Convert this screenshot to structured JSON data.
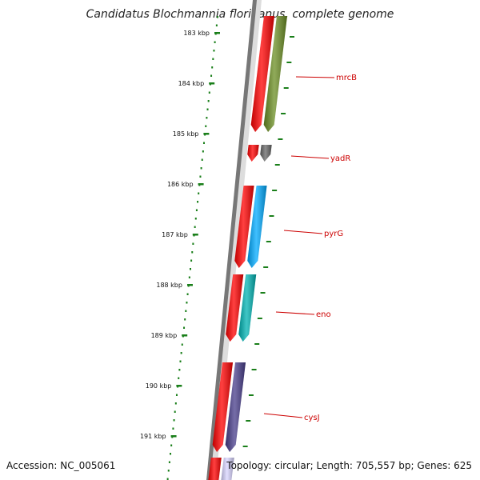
{
  "title": "Candidatus Blochmannia floridanus, complete genome",
  "footer": {
    "accession": "Accession: NC_005061",
    "summary": "Topology: circular; Length: 705,557 bp; Genes: 625"
  },
  "ruler": {
    "tick_labels": [
      "183 kbp",
      "184 kbp",
      "185 kbp",
      "186 kbp",
      "187 kbp",
      "188 kbp",
      "189 kbp",
      "190 kbp",
      "191 kbp"
    ],
    "color": "#1a7f1a"
  },
  "genes": [
    {
      "name": "mrcB",
      "color": "#6b8e23"
    },
    {
      "name": "yadR",
      "color": "#666666"
    },
    {
      "name": "pyrG",
      "color": "#00aaff"
    },
    {
      "name": "eno",
      "color": "#00b3b3"
    },
    {
      "name": "cysJ",
      "color": "#483d8b"
    }
  ],
  "colors": {
    "forward_track": "#ff0000",
    "backbone": "#777777",
    "label": "#cc0000"
  }
}
